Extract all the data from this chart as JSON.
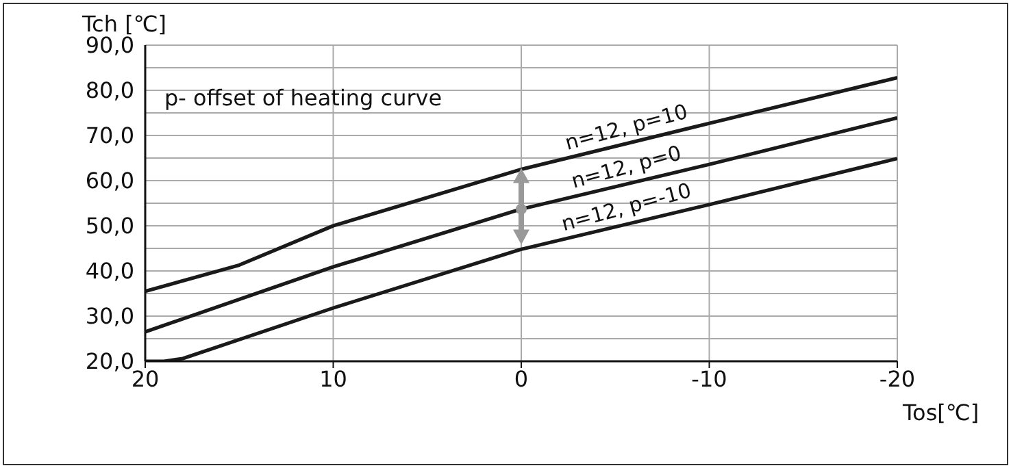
{
  "chart_data": {
    "type": "line",
    "xlabel": "Tos[℃]",
    "ylabel": "Tch [℃]",
    "annotations": [
      "p- offset of heating curve"
    ],
    "xlim": [
      20,
      -20
    ],
    "xticks": [
      20,
      10,
      0,
      -10,
      -20
    ],
    "ylim": [
      20,
      90
    ],
    "yticks": [
      {
        "value": 20,
        "label": "20,0"
      },
      {
        "value": 25,
        "label": null
      },
      {
        "value": 30,
        "label": "30,0"
      },
      {
        "value": 35,
        "label": null
      },
      {
        "value": 40,
        "label": "40,0"
      },
      {
        "value": 45,
        "label": null
      },
      {
        "value": 50,
        "label": "50,0"
      },
      {
        "value": 55,
        "label": null
      },
      {
        "value": 60,
        "label": "60,0"
      },
      {
        "value": 65,
        "label": null
      },
      {
        "value": 70,
        "label": "70,0"
      },
      {
        "value": 75,
        "label": null
      },
      {
        "value": 80,
        "label": "80,0"
      },
      {
        "value": 85,
        "label": null
      },
      {
        "value": 90,
        "label": "90,0"
      }
    ],
    "grid": true,
    "series": [
      {
        "name": "n=12, p=10",
        "color": "#1a1a1a",
        "x": [
          20,
          15,
          10,
          0,
          -10,
          -20
        ],
        "values": [
          35.5,
          41.3,
          50.0,
          62.5,
          72.7,
          82.8
        ]
      },
      {
        "name": "n=12, p=0",
        "color": "#1a1a1a",
        "x": [
          20,
          10,
          0,
          -10,
          -20
        ],
        "values": [
          26.5,
          40.9,
          53.7,
          63.6,
          73.9
        ]
      },
      {
        "name": "n=12, p=-10",
        "color": "#1a1a1a",
        "x": [
          20,
          19,
          18,
          17,
          10,
          0,
          -10,
          -20
        ],
        "values": [
          20.0,
          20.0,
          20.6,
          22.0,
          31.8,
          44.8,
          54.7,
          64.9
        ]
      }
    ]
  }
}
